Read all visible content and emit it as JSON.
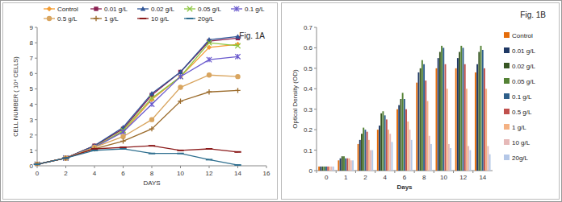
{
  "chart_data": [
    {
      "type": "line",
      "title": "Fig. 1A",
      "x_label": "DAYS",
      "y_label": "CELL NUMBER ( 10⁴ CELLS)",
      "x": [
        0,
        2,
        4,
        6,
        8,
        10,
        12,
        14
      ],
      "xlim": [
        0,
        16
      ],
      "xticks": [
        0,
        2,
        4,
        6,
        8,
        10,
        12,
        14,
        16
      ],
      "ylim": [
        0,
        9
      ],
      "yticks": [
        0,
        1,
        2,
        3,
        4,
        5,
        6,
        7,
        8,
        9
      ],
      "grid": false,
      "legend": "top",
      "series": [
        {
          "name": "Control",
          "color": "#f39c32",
          "marker": "diamond",
          "values": [
            0.1,
            0.5,
            1.3,
            2.2,
            4.3,
            5.8,
            7.7,
            7.9
          ]
        },
        {
          "name": "0.01 g/L",
          "color": "#8b2252",
          "marker": "square",
          "values": [
            0.1,
            0.5,
            1.3,
            2.4,
            4.6,
            6.1,
            8.1,
            8.3
          ]
        },
        {
          "name": "0.02 g/L",
          "color": "#2f5597",
          "marker": "triangle",
          "values": [
            0.1,
            0.5,
            1.3,
            2.5,
            4.7,
            6.1,
            8.2,
            8.4
          ]
        },
        {
          "name": "0.05 g/L",
          "color": "#8cc63f",
          "marker": "x",
          "values": [
            0.1,
            0.5,
            1.2,
            2.3,
            4.4,
            5.8,
            8.0,
            7.8
          ]
        },
        {
          "name": "0.1 g/L",
          "color": "#6a5acd",
          "marker": "star",
          "values": [
            0.1,
            0.5,
            1.2,
            2.2,
            4.0,
            5.8,
            6.9,
            7.1
          ]
        },
        {
          "name": "0.5 g/L",
          "color": "#d9a55f",
          "marker": "circle",
          "values": [
            0.1,
            0.5,
            1.2,
            1.9,
            3.0,
            5.1,
            5.9,
            5.8
          ]
        },
        {
          "name": "1 g/L",
          "color": "#9b6b2b",
          "marker": "plus",
          "values": [
            0.1,
            0.5,
            1.1,
            1.6,
            2.4,
            4.2,
            4.8,
            4.9
          ]
        },
        {
          "name": "10 g/L",
          "color": "#8b1a1a",
          "marker": "dash",
          "values": [
            0.1,
            0.5,
            1.1,
            1.2,
            1.3,
            1.0,
            1.1,
            0.9
          ]
        },
        {
          "name": "20g/L",
          "color": "#2f6f8f",
          "marker": "dash",
          "values": [
            0.1,
            0.5,
            1.0,
            1.1,
            0.8,
            0.8,
            0.4,
            0.05
          ]
        }
      ]
    },
    {
      "type": "bar",
      "title": "Fig. 1B",
      "x_label": "Days",
      "y_label": "Optical Density (OD)",
      "categories": [
        "0",
        "1",
        "2",
        "4",
        "6",
        "8",
        "10",
        "12",
        "14"
      ],
      "ylim": [
        0,
        0.7
      ],
      "yticks": [
        0,
        0.1,
        0.2,
        0.3,
        0.4,
        0.5,
        0.6,
        0.7
      ],
      "grid": false,
      "legend": "right",
      "series": [
        {
          "name": "Control",
          "color": "#e46c0a",
          "values": [
            0.02,
            0.05,
            0.13,
            0.2,
            0.3,
            0.43,
            0.5,
            0.5,
            0.48
          ]
        },
        {
          "name": "0.01 g/L",
          "color": "#1f3864",
          "values": [
            0.02,
            0.06,
            0.15,
            0.22,
            0.32,
            0.48,
            0.55,
            0.55,
            0.52
          ]
        },
        {
          "name": "0.02 g/L",
          "color": "#375623",
          "values": [
            0.02,
            0.07,
            0.18,
            0.28,
            0.35,
            0.5,
            0.58,
            0.58,
            0.58
          ]
        },
        {
          "name": "0.05 g/L",
          "color": "#548235",
          "values": [
            0.02,
            0.07,
            0.21,
            0.29,
            0.38,
            0.54,
            0.61,
            0.61,
            0.61
          ]
        },
        {
          "name": "0.1 g/L",
          "color": "#2e5f8a",
          "values": [
            0.02,
            0.06,
            0.2,
            0.27,
            0.35,
            0.52,
            0.6,
            0.6,
            0.59
          ]
        },
        {
          "name": "0.5 g/L",
          "color": "#c0504d",
          "values": [
            0.02,
            0.06,
            0.19,
            0.25,
            0.3,
            0.44,
            0.52,
            0.52,
            0.5
          ]
        },
        {
          "name": "1 g/L",
          "color": "#f4b183",
          "values": [
            0.02,
            0.06,
            0.15,
            0.2,
            0.24,
            0.34,
            0.4,
            0.4,
            0.4
          ]
        },
        {
          "name": "10 g/L",
          "color": "#e6b9b8",
          "values": [
            0.02,
            0.05,
            0.1,
            0.18,
            0.2,
            0.17,
            0.13,
            0.12,
            0.12
          ]
        },
        {
          "name": "20g/L",
          "color": "#b4c7e7",
          "values": [
            0.02,
            0.05,
            0.1,
            0.14,
            0.15,
            0.13,
            0.11,
            0.1,
            0.08
          ]
        }
      ]
    }
  ]
}
